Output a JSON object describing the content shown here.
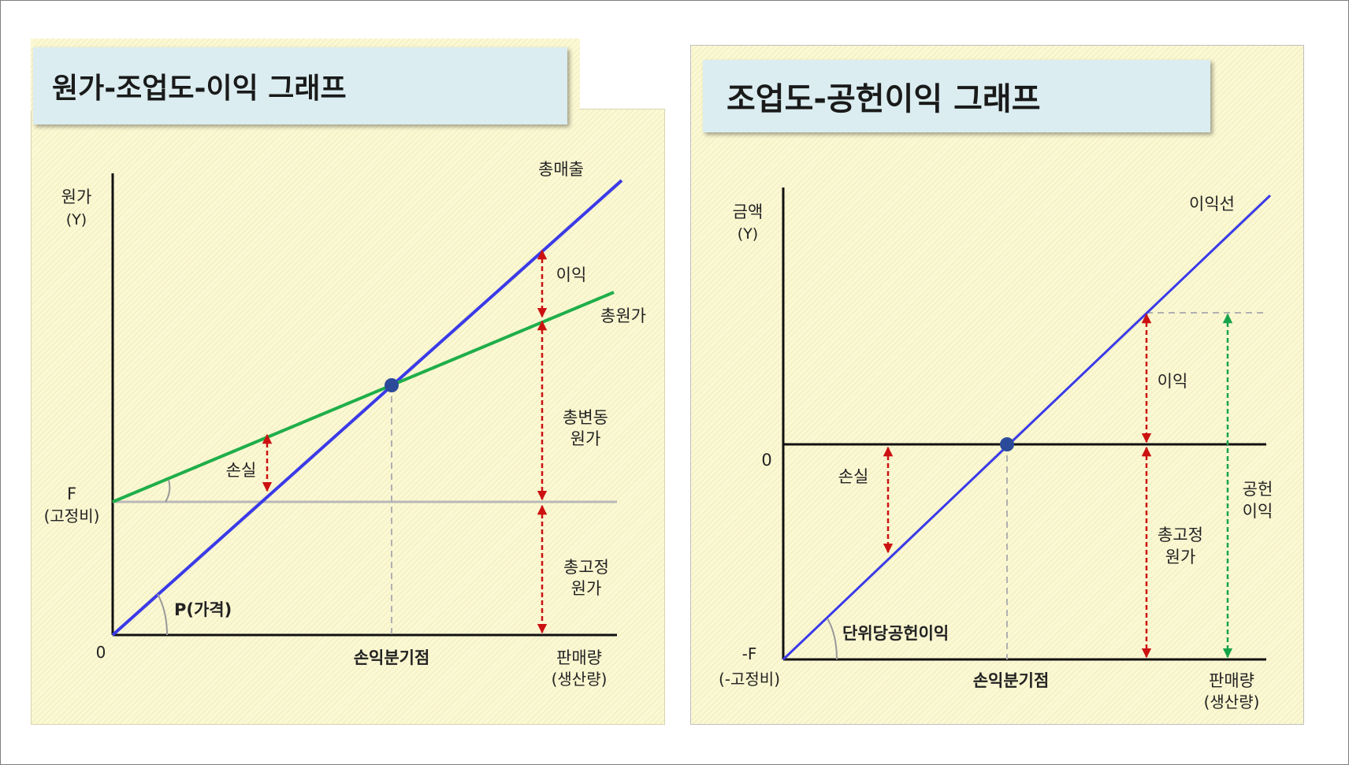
{
  "left_chart": {
    "title": "원가-조업도-이익 그래프",
    "y_axis_label": [
      "원가",
      "(Y)"
    ],
    "origin_label": "0",
    "f_label": [
      "F",
      "(고정비)"
    ],
    "x_axis_label": [
      "판매량",
      "(생산량)"
    ],
    "bep_label": "손익분기점",
    "total_sales_label": "총매출",
    "total_cost_label": "총원가",
    "profit_label": "이익",
    "loss_label": "손실",
    "variable_cost_label": [
      "총변동",
      "원가"
    ],
    "fixed_cost_label": [
      "총고정",
      "원가"
    ],
    "price_label": "P(가격)"
  },
  "right_chart": {
    "title": "조업도-공헌이익 그래프",
    "y_axis_label": [
      "금액",
      "(Y)"
    ],
    "zero_label": "0",
    "neg_f_label": [
      "-F",
      "(-고정비)"
    ],
    "x_axis_label": [
      "판매량",
      "(생산량)"
    ],
    "bep_label": "손익분기점",
    "profit_line_label": "이익선",
    "profit_label": "이익",
    "loss_label": "손실",
    "fixed_cost_label": [
      "총고정",
      "원가"
    ],
    "contribution_label": [
      "공헌",
      "이익"
    ],
    "unit_cm_label": "단위당공헌이익"
  },
  "colors": {
    "sales_line": "#3a3ae8",
    "cost_line": "#1fae4a",
    "arrow_red": "#cc1111",
    "arrow_green": "#17a34a",
    "point": "#2c4a9a",
    "panel_bg": "#fbf8d4",
    "title_bg": "#dbedf0"
  }
}
